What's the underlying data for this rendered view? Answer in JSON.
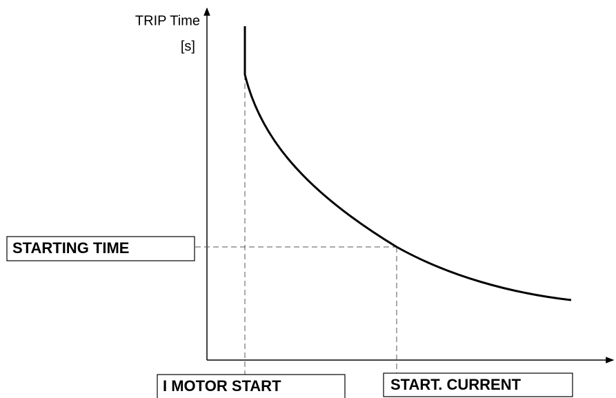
{
  "axis": {
    "y_label": "TRIP Time",
    "y_unit": "[s]"
  },
  "labels": {
    "starting_time": "STARTING TIME",
    "motor_start": "I MOTOR START",
    "start_current": "START. CURRENT"
  }
}
